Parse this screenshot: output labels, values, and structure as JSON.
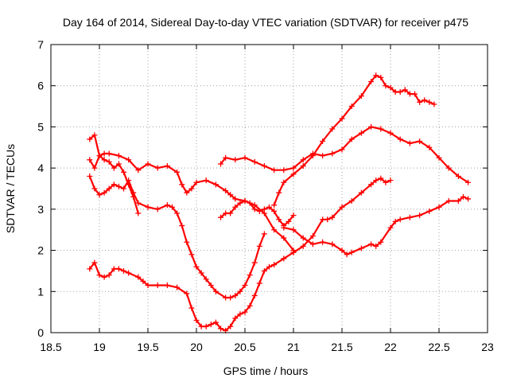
{
  "chart_data": {
    "type": "line",
    "title": "Day 164 of 2014, Sidereal Day-to-day VTEC variation (SDTVAR) for receiver p475",
    "xlabel": "GPS time / hours",
    "ylabel": "SDTVAR / TECUs",
    "xlim": [
      18.5,
      23
    ],
    "ylim": [
      0,
      7
    ],
    "xticks": [
      "18.5",
      "19",
      "19.5",
      "20",
      "20.5",
      "21",
      "21.5",
      "22",
      "22.5",
      "23"
    ],
    "yticks": [
      "0",
      "1",
      "2",
      "3",
      "4",
      "5",
      "6",
      "7"
    ],
    "grid": true,
    "color": "#ff0000",
    "marker": "plus",
    "series": [
      {
        "name": "series-1",
        "x": [
          18.9,
          18.95,
          19.0,
          19.05,
          19.1,
          19.2,
          19.3,
          19.4,
          19.5,
          19.6,
          19.7,
          19.8,
          19.85,
          19.9,
          19.95,
          20.0,
          20.1,
          20.2,
          20.3,
          20.35,
          20.4,
          20.5,
          20.6,
          20.7,
          20.8,
          20.9,
          21.0
        ],
        "y": [
          4.2,
          4.0,
          4.3,
          4.35,
          4.35,
          4.3,
          4.2,
          3.95,
          4.1,
          4.0,
          4.05,
          3.9,
          3.6,
          3.4,
          3.5,
          3.65,
          3.7,
          3.6,
          3.45,
          3.35,
          3.25,
          3.2,
          3.1,
          2.9,
          2.5,
          2.3,
          2.0
        ]
      },
      {
        "name": "series-2",
        "x": [
          18.9,
          18.95,
          19.0,
          19.05,
          19.1,
          19.15,
          19.2,
          19.25,
          19.3,
          19.35,
          19.4,
          19.5,
          19.6,
          19.7,
          19.75,
          19.8,
          19.85,
          19.9,
          19.95,
          20.0,
          20.05,
          20.1,
          20.15,
          20.2,
          20.3,
          20.35,
          20.4,
          20.45,
          20.5,
          20.55,
          20.6,
          20.65,
          20.7
        ],
        "y": [
          3.8,
          3.5,
          3.35,
          3.4,
          3.5,
          3.6,
          3.55,
          3.5,
          3.7,
          3.4,
          3.15,
          3.05,
          3.0,
          3.1,
          3.05,
          2.9,
          2.6,
          2.2,
          1.9,
          1.6,
          1.45,
          1.3,
          1.15,
          1.0,
          0.85,
          0.85,
          0.9,
          1.0,
          1.15,
          1.4,
          1.7,
          2.1,
          2.4
        ]
      },
      {
        "name": "series-3",
        "x": [
          18.9,
          18.95,
          19.0,
          19.05,
          19.1,
          19.15,
          19.2,
          19.25,
          19.3,
          19.35,
          19.4
        ],
        "y": [
          4.7,
          4.8,
          4.3,
          4.2,
          4.15,
          4.0,
          4.1,
          3.9,
          3.6,
          3.3,
          2.9
        ]
      },
      {
        "name": "series-4",
        "x": [
          18.9,
          18.95,
          19.0,
          19.05,
          19.1,
          19.15,
          19.2,
          19.25,
          19.3,
          19.4,
          19.45,
          19.5,
          19.6,
          19.7,
          19.8,
          19.9,
          19.95,
          20.0,
          20.05,
          20.1,
          20.15,
          20.2,
          20.25,
          20.3,
          20.35,
          20.4,
          20.45,
          20.5,
          20.55,
          20.6,
          20.65,
          20.7,
          20.75,
          20.8,
          20.9,
          21.0
        ],
        "y": [
          1.55,
          1.7,
          1.4,
          1.35,
          1.4,
          1.55,
          1.55,
          1.5,
          1.45,
          1.35,
          1.25,
          1.15,
          1.15,
          1.15,
          1.1,
          0.95,
          0.6,
          0.3,
          0.15,
          0.15,
          0.2,
          0.25,
          0.1,
          0.05,
          0.15,
          0.35,
          0.45,
          0.5,
          0.65,
          0.9,
          1.2,
          1.5,
          1.6,
          1.65,
          1.8,
          1.95
        ]
      },
      {
        "name": "series-5",
        "x": [
          20.25,
          20.3,
          20.4,
          20.5,
          20.6,
          20.7,
          20.8,
          20.9,
          21.0,
          21.1,
          21.2,
          21.3,
          21.4,
          21.5,
          21.6,
          21.7,
          21.8,
          21.9,
          22.0,
          22.1,
          22.2,
          22.3,
          22.4,
          22.5,
          22.6,
          22.7,
          22.8
        ],
        "y": [
          4.1,
          4.25,
          4.2,
          4.25,
          4.15,
          4.05,
          3.95,
          3.95,
          4.0,
          4.2,
          4.35,
          4.3,
          4.35,
          4.45,
          4.7,
          4.85,
          5.0,
          4.95,
          4.85,
          4.7,
          4.6,
          4.65,
          4.5,
          4.25,
          4.0,
          3.8,
          3.65
        ]
      },
      {
        "name": "series-6",
        "x": [
          20.8,
          20.85,
          20.9,
          21.0,
          21.1,
          21.2,
          21.3,
          21.4,
          21.5,
          21.6,
          21.7,
          21.8,
          21.85,
          21.9,
          21.95,
          22.0,
          22.05,
          22.1,
          22.15,
          22.2,
          22.25,
          22.3,
          22.35,
          22.4,
          22.45
        ],
        "y": [
          3.1,
          3.4,
          3.65,
          3.85,
          4.05,
          4.3,
          4.65,
          4.95,
          5.2,
          5.5,
          5.75,
          6.1,
          6.25,
          6.2,
          6.0,
          5.95,
          5.85,
          5.85,
          5.9,
          5.8,
          5.8,
          5.6,
          5.65,
          5.6,
          5.55
        ]
      },
      {
        "name": "series-7",
        "x": [
          20.25,
          20.3,
          20.35,
          20.4,
          20.45,
          20.5,
          20.55,
          20.6,
          20.65,
          20.7,
          20.75,
          20.8,
          20.85,
          20.9,
          20.95,
          21.0
        ],
        "y": [
          2.8,
          2.9,
          2.9,
          3.05,
          3.15,
          3.2,
          3.15,
          3.0,
          2.95,
          3.0,
          3.05,
          2.95,
          2.75,
          2.6,
          2.7,
          2.85
        ]
      },
      {
        "name": "series-8",
        "x": [
          21.0,
          21.1,
          21.2,
          21.3,
          21.35,
          21.4,
          21.5,
          21.6,
          21.7,
          21.8,
          21.85,
          21.9,
          21.95,
          22.0
        ],
        "y": [
          1.95,
          2.1,
          2.35,
          2.75,
          2.75,
          2.8,
          3.05,
          3.2,
          3.4,
          3.6,
          3.7,
          3.75,
          3.65,
          3.7
        ]
      },
      {
        "name": "series-9",
        "x": [
          20.9,
          21.0,
          21.1,
          21.2,
          21.3,
          21.4,
          21.5,
          21.55,
          21.6,
          21.7,
          21.8,
          21.85,
          21.9,
          22.0,
          22.05,
          22.1,
          22.2,
          22.3,
          22.4,
          22.5,
          22.6,
          22.7,
          22.75,
          22.8
        ],
        "y": [
          2.55,
          2.5,
          2.3,
          2.15,
          2.2,
          2.15,
          2.0,
          1.9,
          1.95,
          2.05,
          2.15,
          2.1,
          2.2,
          2.55,
          2.7,
          2.75,
          2.8,
          2.85,
          2.95,
          3.05,
          3.2,
          3.2,
          3.3,
          3.25
        ]
      }
    ]
  }
}
